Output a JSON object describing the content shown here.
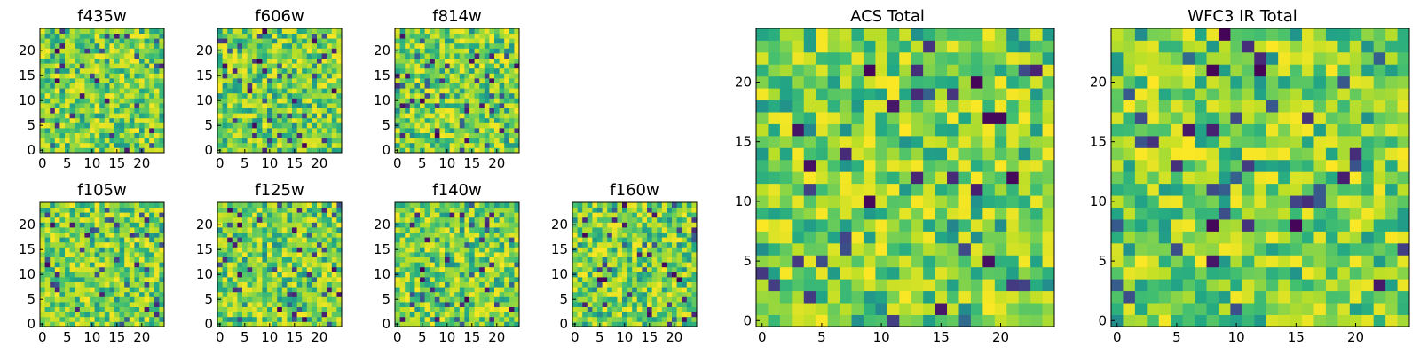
{
  "figure": {
    "type": "heatmap",
    "colormap": "viridis",
    "grid_size": 25
  },
  "chart_data": [
    {
      "type": "heatmap",
      "title": "f435w",
      "grid": [
        25,
        25
      ],
      "xticks": [
        0,
        5,
        10,
        15,
        20
      ],
      "yticks": [
        0,
        5,
        10,
        15,
        20
      ],
      "seed": 435
    },
    {
      "type": "heatmap",
      "title": "f606w",
      "grid": [
        25,
        25
      ],
      "xticks": [
        0,
        5,
        10,
        15,
        20
      ],
      "yticks": [
        0,
        5,
        10,
        15,
        20
      ],
      "seed": 606
    },
    {
      "type": "heatmap",
      "title": "f814w",
      "grid": [
        25,
        25
      ],
      "xticks": [
        0,
        5,
        10,
        15,
        20
      ],
      "yticks": [
        0,
        5,
        10,
        15,
        20
      ],
      "seed": 814
    },
    {
      "type": "heatmap",
      "title": "f105w",
      "grid": [
        25,
        25
      ],
      "xticks": [
        0,
        5,
        10,
        15,
        20
      ],
      "yticks": [
        0,
        5,
        10,
        15,
        20
      ],
      "seed": 105
    },
    {
      "type": "heatmap",
      "title": "f125w",
      "grid": [
        25,
        25
      ],
      "xticks": [
        0,
        5,
        10,
        15,
        20
      ],
      "yticks": [
        0,
        5,
        10,
        15,
        20
      ],
      "seed": 125
    },
    {
      "type": "heatmap",
      "title": "f140w",
      "grid": [
        25,
        25
      ],
      "xticks": [
        0,
        5,
        10,
        15,
        20
      ],
      "yticks": [
        0,
        5,
        10,
        15,
        20
      ],
      "seed": 140
    },
    {
      "type": "heatmap",
      "title": "f160w",
      "grid": [
        25,
        25
      ],
      "xticks": [
        0,
        5,
        10,
        15,
        20
      ],
      "yticks": [
        0,
        5,
        10,
        15,
        20
      ],
      "seed": 160
    },
    {
      "type": "heatmap",
      "title": "ACS Total",
      "grid": [
        25,
        25
      ],
      "xticks": [
        0,
        5,
        10,
        15,
        20
      ],
      "yticks": [
        0,
        5,
        10,
        15,
        20
      ],
      "seed": 1001
    },
    {
      "type": "heatmap",
      "title": "WFC3 IR Total",
      "grid": [
        25,
        25
      ],
      "xticks": [
        0,
        5,
        10,
        15,
        20
      ],
      "yticks": [
        0,
        5,
        10,
        15,
        20
      ],
      "seed": 2002
    }
  ]
}
